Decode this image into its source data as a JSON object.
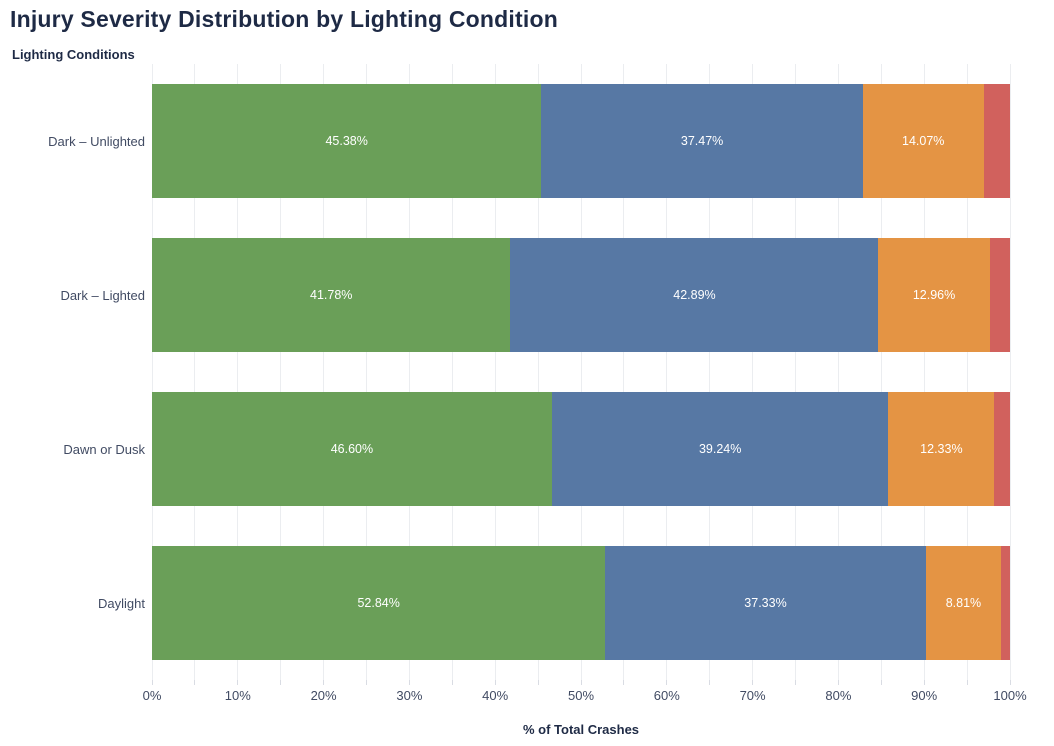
{
  "title": "Injury Severity Distribution by Lighting Condition",
  "colors": {
    "green": "#6a9f58",
    "blue": "#5778a4",
    "orange": "#e49444",
    "red": "#d1615d",
    "title_text": "#1e2a45",
    "axis_text": "#414b63",
    "gridline": "#ebedf0"
  },
  "chart_data": {
    "type": "bar",
    "orientation": "horizontal",
    "stacked": true,
    "title": "Injury Severity Distribution by Lighting Condition",
    "ylabel": "Lighting Conditions",
    "xlabel": "% of Total Crashes",
    "xlim": [
      0,
      100
    ],
    "grid": true,
    "gridline_interval": 5,
    "x_tick_interval": 10,
    "legend": "none",
    "categories": [
      "Dark – Unlighted",
      "Dark – Lighted",
      "Dawn or Dusk",
      "Daylight"
    ],
    "x_ticks": [
      "0%",
      "10%",
      "20%",
      "30%",
      "40%",
      "50%",
      "60%",
      "70%",
      "80%",
      "90%",
      "100%"
    ],
    "series": [
      {
        "name": "green-segment",
        "color": "#6a9f58",
        "values": [
          45.38,
          41.78,
          46.6,
          52.84
        ],
        "labels": [
          "45.38%",
          "41.78%",
          "46.60%",
          "52.84%"
        ]
      },
      {
        "name": "blue-segment",
        "color": "#5778a4",
        "values": [
          37.47,
          42.89,
          39.24,
          37.33
        ],
        "labels": [
          "37.47%",
          "42.89%",
          "39.24%",
          "37.33%"
        ]
      },
      {
        "name": "orange-segment",
        "color": "#e49444",
        "values": [
          14.07,
          12.96,
          12.33,
          8.81
        ],
        "labels": [
          "14.07%",
          "12.96%",
          "12.33%",
          "8.81%"
        ]
      },
      {
        "name": "red-segment",
        "color": "#d1615d",
        "values": [
          3.08,
          2.37,
          1.83,
          1.02
        ],
        "labels": [
          "",
          "",
          "",
          ""
        ]
      }
    ]
  }
}
